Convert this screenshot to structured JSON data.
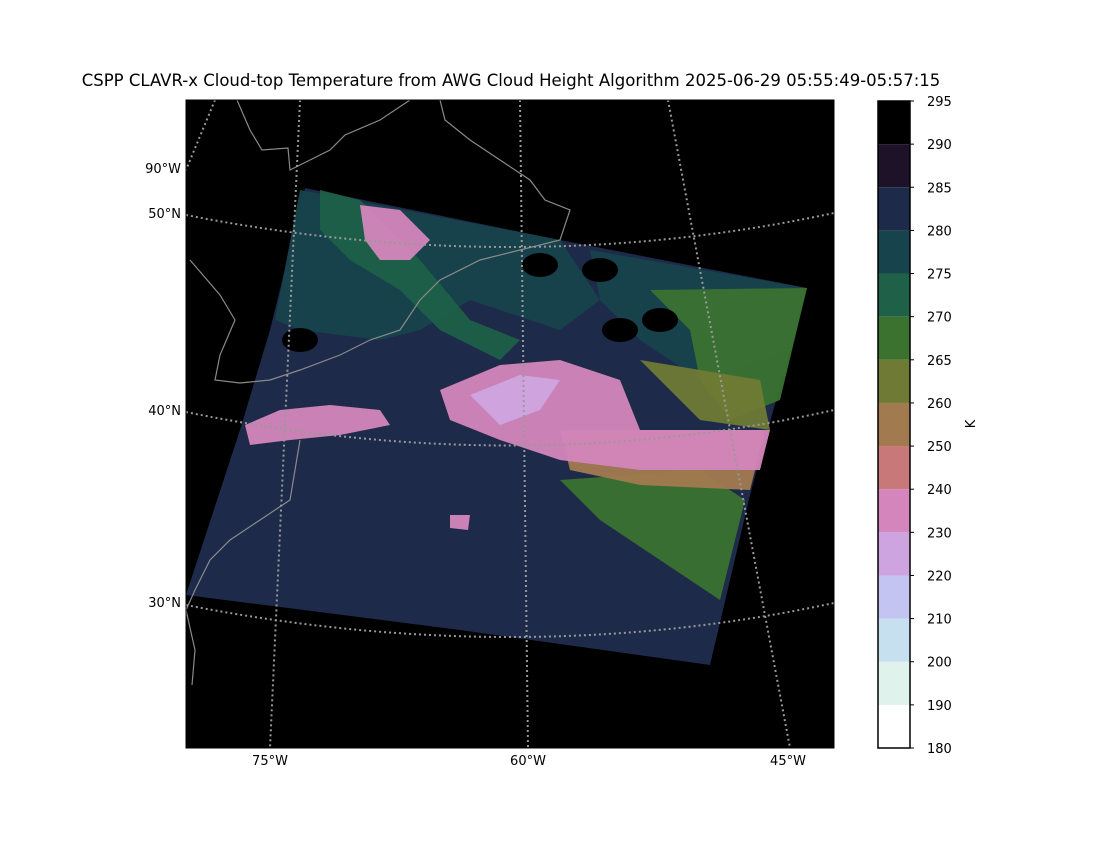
{
  "title": "CSPP CLAVR-x Cloud-top Temperature from AWG Cloud Height Algorithm 2025-06-29 05:55:49-05:57:15",
  "map": {
    "lat_labels": [
      "50°N",
      "40°N",
      "30°N"
    ],
    "lon_labels": [
      "90°W",
      "75°W",
      "60°W",
      "45°W"
    ]
  },
  "colorbar": {
    "label": "K",
    "ticks": [
      180,
      190,
      200,
      210,
      220,
      230,
      240,
      250,
      260,
      265,
      270,
      275,
      280,
      285,
      290,
      295
    ],
    "colors": [
      "#ffffff",
      "#dff2ec",
      "#c6e0f0",
      "#c4c4f2",
      "#cda4e0",
      "#d486bc",
      "#c87878",
      "#a27a50",
      "#6f7a34",
      "#3b7230",
      "#1e6048",
      "#17434c",
      "#1e2a4a",
      "#1e1228",
      "#000000"
    ]
  }
}
